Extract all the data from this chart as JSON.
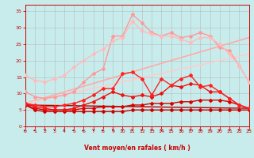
{
  "xlabel": "Vent moyen/en rafales ( km/h )",
  "xlim": [
    0,
    23
  ],
  "ylim": [
    0,
    37
  ],
  "yticks": [
    0,
    5,
    10,
    15,
    20,
    25,
    30,
    35
  ],
  "xticks": [
    0,
    1,
    2,
    3,
    4,
    5,
    6,
    7,
    8,
    9,
    10,
    11,
    12,
    13,
    14,
    15,
    16,
    17,
    18,
    19,
    20,
    21,
    22,
    23
  ],
  "background_color": "#c8ecec",
  "grid_color": "#b0b0b0",
  "lines": [
    {
      "x": [
        0,
        1,
        2,
        3,
        4,
        5,
        6,
        7,
        8,
        9,
        10,
        11,
        12,
        13,
        14,
        15,
        16,
        17,
        18,
        19,
        20,
        21,
        22,
        23
      ],
      "y": [
        6.5,
        5.0,
        4.5,
        4.5,
        4.5,
        4.5,
        4.5,
        4.5,
        4.5,
        4.5,
        4.5,
        5.0,
        5.0,
        5.0,
        5.0,
        5.0,
        5.0,
        5.0,
        5.0,
        5.0,
        5.0,
        5.0,
        5.0,
        5.0
      ],
      "color": "#cc0000",
      "linewidth": 1.0,
      "marker": "D",
      "markersize": 2.0
    },
    {
      "x": [
        0,
        1,
        2,
        3,
        4,
        5,
        6,
        7,
        8,
        9,
        10,
        11,
        12,
        13,
        14,
        15,
        16,
        17,
        18,
        19,
        20,
        21,
        22,
        23
      ],
      "y": [
        6.5,
        5.5,
        5.0,
        5.0,
        5.0,
        5.0,
        5.5,
        5.5,
        6.0,
        6.0,
        6.0,
        6.5,
        6.5,
        7.0,
        7.0,
        7.0,
        7.5,
        7.5,
        8.0,
        8.0,
        8.0,
        7.5,
        6.5,
        5.5
      ],
      "color": "#dd0000",
      "linewidth": 1.0,
      "marker": "D",
      "markersize": 2.0
    },
    {
      "x": [
        0,
        1,
        2,
        3,
        4,
        5,
        6,
        7,
        8,
        9,
        10,
        11,
        12,
        13,
        14,
        15,
        16,
        17,
        18,
        19,
        20,
        21,
        22,
        23
      ],
      "y": [
        7.0,
        6.0,
        5.5,
        5.0,
        5.0,
        5.5,
        6.5,
        7.5,
        9.0,
        10.5,
        9.5,
        9.0,
        9.5,
        9.0,
        10.0,
        12.5,
        12.0,
        13.0,
        12.5,
        10.5,
        10.5,
        8.5,
        6.5,
        5.5
      ],
      "color": "#ee1111",
      "linewidth": 1.0,
      "marker": "D",
      "markersize": 2.0
    },
    {
      "x": [
        0,
        1,
        2,
        3,
        4,
        5,
        6,
        7,
        8,
        9,
        10,
        11,
        12,
        13,
        14,
        15,
        16,
        17,
        18,
        19,
        20,
        21,
        22,
        23
      ],
      "y": [
        7.0,
        6.5,
        6.0,
        6.0,
        6.5,
        7.0,
        8.0,
        9.5,
        11.5,
        11.5,
        16.0,
        16.5,
        14.5,
        9.5,
        14.5,
        12.5,
        14.5,
        15.5,
        12.0,
        12.5,
        10.5,
        8.5,
        6.5,
        5.5
      ],
      "color": "#ff2222",
      "linewidth": 1.0,
      "marker": "D",
      "markersize": 2.0
    },
    {
      "x": [
        0,
        1,
        2,
        3,
        4,
        5,
        6,
        7,
        8,
        9,
        10,
        11,
        12,
        13,
        14,
        15,
        16,
        17,
        18,
        19,
        20,
        21,
        22,
        23
      ],
      "y": [
        10.5,
        9.0,
        8.5,
        9.0,
        9.5,
        10.5,
        13.5,
        16.0,
        17.5,
        27.5,
        27.5,
        34.0,
        31.5,
        28.5,
        27.5,
        28.5,
        27.0,
        27.5,
        28.5,
        27.5,
        24.0,
        23.0,
        18.5,
        13.5
      ],
      "color": "#ff9999",
      "linewidth": 1.0,
      "marker": "D",
      "markersize": 2.0
    },
    {
      "x": [
        0,
        1,
        2,
        3,
        4,
        5,
        6,
        7,
        8,
        9,
        10,
        11,
        12,
        13,
        14,
        15,
        16,
        17,
        18,
        19,
        20,
        21,
        22,
        23
      ],
      "y": [
        15.5,
        14.0,
        13.5,
        14.5,
        15.5,
        18.0,
        20.0,
        22.0,
        23.5,
        26.0,
        27.0,
        32.0,
        29.0,
        28.0,
        27.5,
        27.5,
        26.5,
        25.5,
        27.0,
        27.0,
        25.0,
        22.0,
        18.5,
        13.5
      ],
      "color": "#ffbbbb",
      "linewidth": 1.0,
      "marker": "D",
      "markersize": 2.0
    },
    {
      "x": [
        0,
        23
      ],
      "y": [
        7.0,
        27.0
      ],
      "color": "#ffaaaa",
      "linewidth": 1.2,
      "marker": null,
      "markersize": 0
    },
    {
      "x": [
        0,
        23
      ],
      "y": [
        7.0,
        22.0
      ],
      "color": "#ffcccc",
      "linewidth": 1.2,
      "marker": null,
      "markersize": 0
    },
    {
      "x": [
        0,
        23
      ],
      "y": [
        6.5,
        5.5
      ],
      "color": "#aa0000",
      "linewidth": 1.0,
      "marker": null,
      "markersize": 0
    }
  ],
  "arrow_color": "#cc0000",
  "tick_color": "#cc0000",
  "label_color": "#cc0000",
  "spine_color": "#cc0000"
}
